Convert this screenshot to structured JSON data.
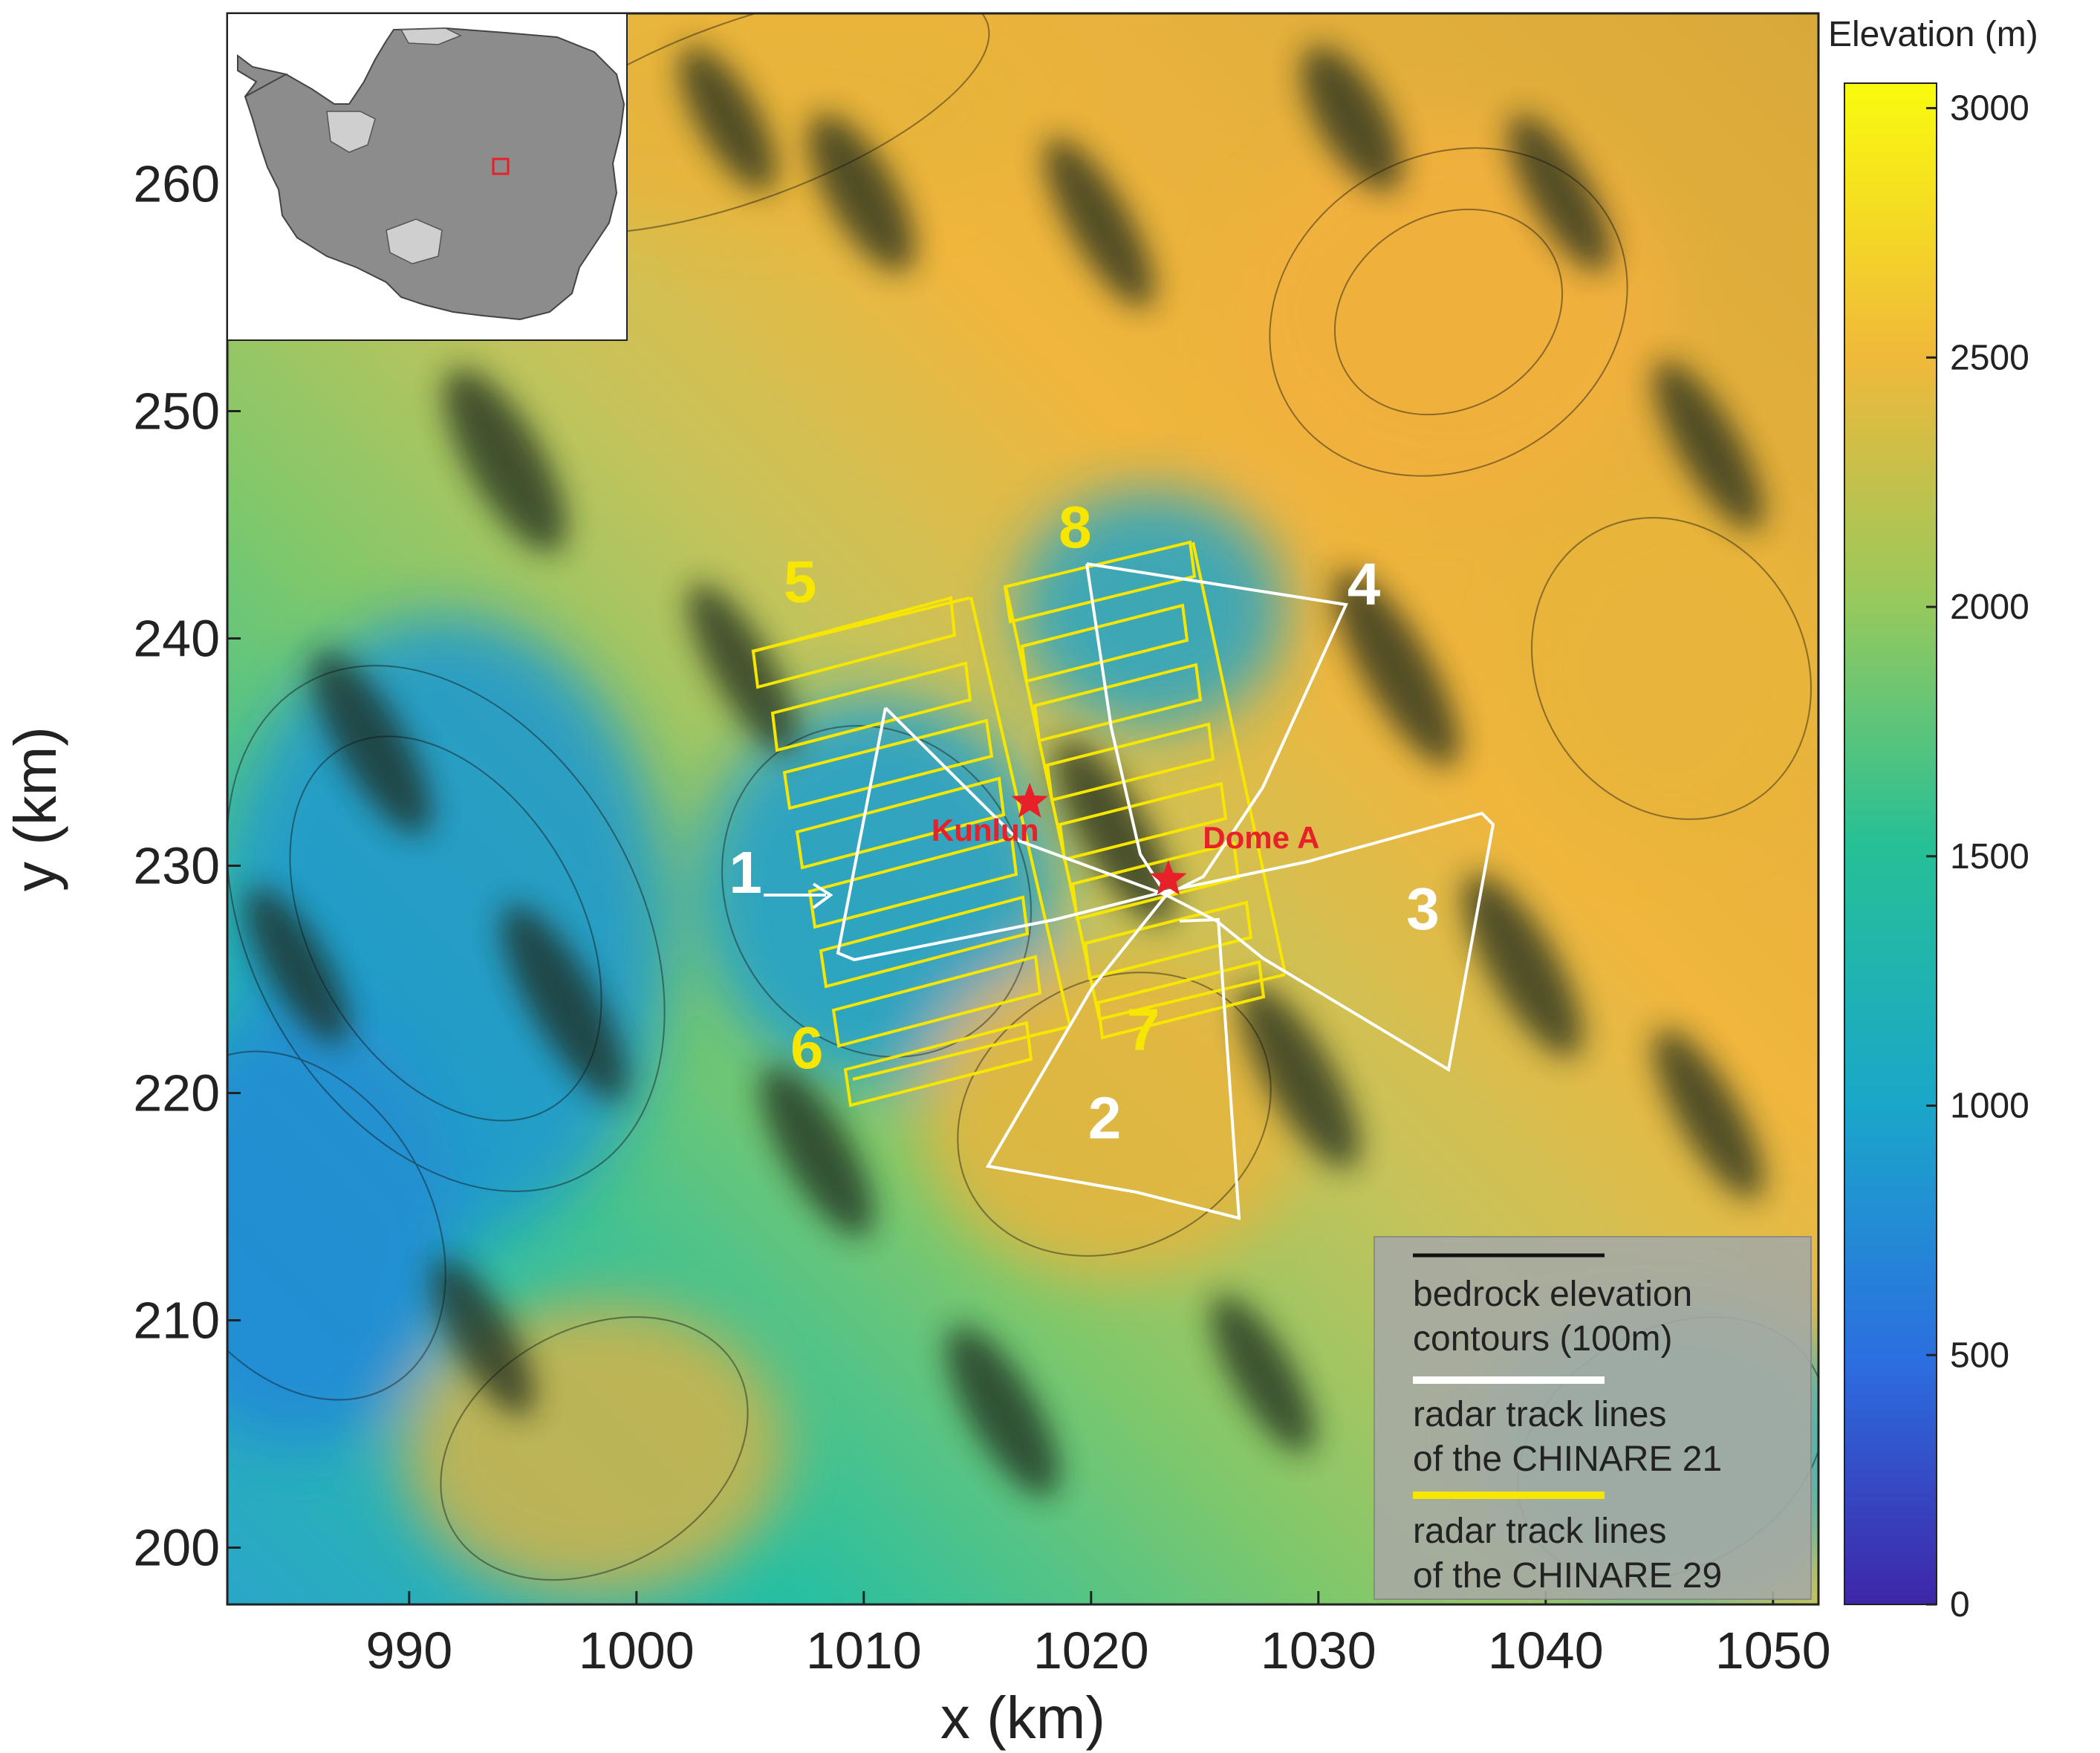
{
  "axes": {
    "x_label": "x (km)",
    "y_label": "y (km)",
    "x_range": [
      982,
      1052
    ],
    "y_range": [
      197.5,
      267.5
    ],
    "x_ticks": [
      "990",
      "1000",
      "1010",
      "1020",
      "1030",
      "1040",
      "1050"
    ],
    "y_ticks": [
      "200",
      "210",
      "220",
      "230",
      "240",
      "250",
      "260"
    ]
  },
  "colorbar": {
    "title": "Elevation (m)",
    "ticks": [
      "0",
      "500",
      "1000",
      "1500",
      "2000",
      "2500",
      "3000"
    ],
    "range": [
      0,
      3050
    ],
    "colors": [
      "#3e26a8",
      "#2c6ee0",
      "#1aa7c9",
      "#26c096",
      "#98c95c",
      "#f0b93a",
      "#f9fb0e"
    ]
  },
  "sites": [
    {
      "name": "Kunlun",
      "x": 1017.3,
      "y": 232.8
    },
    {
      "name": "Dome A",
      "x": 1023.4,
      "y": 229.4
    }
  ],
  "survey_labels": [
    {
      "text": "1",
      "color": "white",
      "x": 1004.8,
      "y": 228.8
    },
    {
      "text": "2",
      "color": "white",
      "x": 1020.6,
      "y": 218.0
    },
    {
      "text": "3",
      "color": "white",
      "x": 1034.6,
      "y": 227.2
    },
    {
      "text": "4",
      "color": "white",
      "x": 1032.0,
      "y": 241.5
    },
    {
      "text": "5",
      "color": "yellow",
      "x": 1007.2,
      "y": 241.6
    },
    {
      "text": "6",
      "color": "yellow",
      "x": 1007.5,
      "y": 221.1
    },
    {
      "text": "7",
      "color": "yellow",
      "x": 1022.3,
      "y": 221.9
    },
    {
      "text": "8",
      "color": "yellow",
      "x": 1019.3,
      "y": 244.0
    }
  ],
  "legend": {
    "contour_line_1": "bedrock elevation",
    "contour_line_2": "contours (100m)",
    "white_line_1": "radar track lines",
    "white_line_2": "of the CHINARE 21",
    "yellow_line_1": "radar track lines",
    "yellow_line_2": "of the CHINARE 29",
    "colors": {
      "contour": "#111111",
      "white": "#ffffff",
      "yellow": "#f7e600"
    }
  },
  "inset": {
    "description_marker_color": "#e8202a"
  }
}
